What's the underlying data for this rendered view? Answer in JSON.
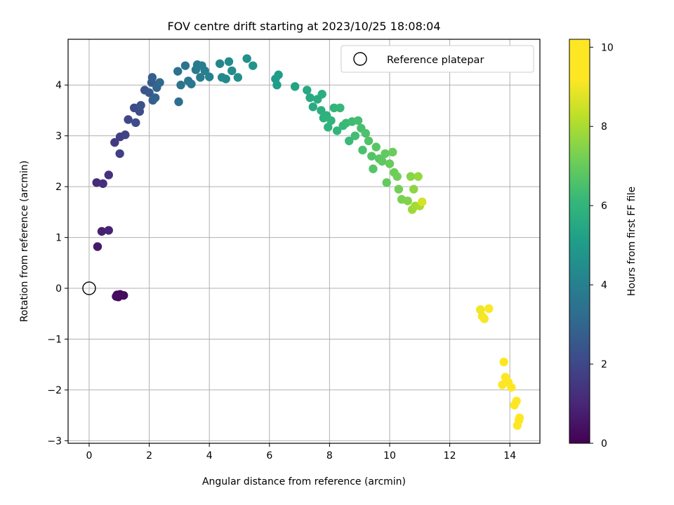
{
  "chart_data": {
    "type": "scatter",
    "title": "FOV centre drift starting at 2023/10/25 18:08:04",
    "xlabel": "Angular distance from reference (arcmin)",
    "ylabel": "Rotation from reference (arcmin)",
    "xlim": [
      -0.7,
      15.0
    ],
    "ylim": [
      -3.05,
      4.9
    ],
    "xticks": [
      "0",
      "2",
      "4",
      "6",
      "8",
      "10",
      "12",
      "14"
    ],
    "xtick_values": [
      0,
      2,
      4,
      6,
      8,
      10,
      12,
      14
    ],
    "yticks": [
      "−3",
      "−2",
      "−1",
      "0",
      "1",
      "2",
      "3",
      "4"
    ],
    "ytick_values": [
      -3,
      -2,
      -1,
      0,
      1,
      2,
      3,
      4
    ],
    "grid": true,
    "legend": {
      "placement": "top-right",
      "entries": [
        "Reference platepar"
      ]
    },
    "reference": {
      "x": 0,
      "y": 0
    },
    "colorbar": {
      "label": "Hours from first FF file",
      "colormap": "viridis",
      "range": [
        0,
        10.2
      ],
      "ticks": [
        "0",
        "2",
        "4",
        "6",
        "8",
        "10"
      ],
      "tick_values": [
        0,
        2,
        4,
        6,
        8,
        10
      ]
    },
    "points": [
      [
        0.93,
        -0.13,
        0.1
      ],
      [
        0.97,
        -0.17,
        0.15
      ],
      [
        1.03,
        -0.12,
        0.2
      ],
      [
        1.15,
        -0.14,
        0.25
      ],
      [
        0.9,
        -0.16,
        0.3
      ],
      [
        0.28,
        0.82,
        0.6
      ],
      [
        0.42,
        1.12,
        0.8
      ],
      [
        0.65,
        1.14,
        0.9
      ],
      [
        0.25,
        2.08,
        1.1
      ],
      [
        0.46,
        2.06,
        1.2
      ],
      [
        0.65,
        2.23,
        1.3
      ],
      [
        0.85,
        2.87,
        1.6
      ],
      [
        1.03,
        2.98,
        1.7
      ],
      [
        1.02,
        2.65,
        1.75
      ],
      [
        1.2,
        3.02,
        1.85
      ],
      [
        1.3,
        3.32,
        2.0
      ],
      [
        1.5,
        3.55,
        2.1
      ],
      [
        1.55,
        3.26,
        2.15
      ],
      [
        1.68,
        3.48,
        2.2
      ],
      [
        1.72,
        3.6,
        2.3
      ],
      [
        1.85,
        3.9,
        2.45
      ],
      [
        2.0,
        3.85,
        2.55
      ],
      [
        2.08,
        4.05,
        2.65
      ],
      [
        2.1,
        4.15,
        2.75
      ],
      [
        2.12,
        3.7,
        2.8
      ],
      [
        2.2,
        3.75,
        2.9
      ],
      [
        2.25,
        3.95,
        3.0
      ],
      [
        2.35,
        4.05,
        3.1
      ],
      [
        2.98,
        3.67,
        3.3
      ],
      [
        2.95,
        4.27,
        3.4
      ],
      [
        3.05,
        4.0,
        3.5
      ],
      [
        3.2,
        4.38,
        3.55
      ],
      [
        3.3,
        4.08,
        3.6
      ],
      [
        3.4,
        4.02,
        3.7
      ],
      [
        3.55,
        4.3,
        3.75
      ],
      [
        3.6,
        4.4,
        3.8
      ],
      [
        3.7,
        4.15,
        3.85
      ],
      [
        3.75,
        4.38,
        3.9
      ],
      [
        3.85,
        4.28,
        3.95
      ],
      [
        4.0,
        4.16,
        4.05
      ],
      [
        4.35,
        4.42,
        4.2
      ],
      [
        4.42,
        4.15,
        4.3
      ],
      [
        4.55,
        4.12,
        4.35
      ],
      [
        4.65,
        4.46,
        4.4
      ],
      [
        4.75,
        4.28,
        4.45
      ],
      [
        4.95,
        4.15,
        4.5
      ],
      [
        5.25,
        4.52,
        4.6
      ],
      [
        5.45,
        4.38,
        4.7
      ],
      [
        6.2,
        4.12,
        5.0
      ],
      [
        6.3,
        4.2,
        5.05
      ],
      [
        6.25,
        4.0,
        5.1
      ],
      [
        6.85,
        3.97,
        5.3
      ],
      [
        7.25,
        3.9,
        5.5
      ],
      [
        7.35,
        3.75,
        5.55
      ],
      [
        7.45,
        3.57,
        5.6
      ],
      [
        7.6,
        3.72,
        5.65
      ],
      [
        7.75,
        3.82,
        5.7
      ],
      [
        7.72,
        3.5,
        5.75
      ],
      [
        7.8,
        3.35,
        5.8
      ],
      [
        7.9,
        3.4,
        5.85
      ],
      [
        7.95,
        3.17,
        5.9
      ],
      [
        8.05,
        3.3,
        5.95
      ],
      [
        8.15,
        3.55,
        6.0
      ],
      [
        8.25,
        3.1,
        6.05
      ],
      [
        8.35,
        3.55,
        6.1
      ],
      [
        8.45,
        3.2,
        6.15
      ],
      [
        8.55,
        3.25,
        6.2
      ],
      [
        8.65,
        2.9,
        6.25
      ],
      [
        8.75,
        3.28,
        6.3
      ],
      [
        8.85,
        3.0,
        6.35
      ],
      [
        8.95,
        3.3,
        6.4
      ],
      [
        9.05,
        3.15,
        6.45
      ],
      [
        9.1,
        2.72,
        6.5
      ],
      [
        9.2,
        3.05,
        6.55
      ],
      [
        9.3,
        2.9,
        6.6
      ],
      [
        9.4,
        2.6,
        6.65
      ],
      [
        9.45,
        2.35,
        6.7
      ],
      [
        9.55,
        2.78,
        6.75
      ],
      [
        9.65,
        2.55,
        6.8
      ],
      [
        9.75,
        2.5,
        6.85
      ],
      [
        9.85,
        2.65,
        6.9
      ],
      [
        9.9,
        2.08,
        6.95
      ],
      [
        10.0,
        2.45,
        7.0
      ],
      [
        10.1,
        2.68,
        7.05
      ],
      [
        10.15,
        2.28,
        7.1
      ],
      [
        10.25,
        2.2,
        7.15
      ],
      [
        10.3,
        1.95,
        7.2
      ],
      [
        10.4,
        1.75,
        7.3
      ],
      [
        10.6,
        1.72,
        7.4
      ],
      [
        10.7,
        2.2,
        7.5
      ],
      [
        10.8,
        1.95,
        7.6
      ],
      [
        10.95,
        2.2,
        7.7
      ],
      [
        10.75,
        1.55,
        7.8
      ],
      [
        10.85,
        1.62,
        7.9
      ],
      [
        11.0,
        1.62,
        8.0
      ],
      [
        11.08,
        1.7,
        8.6
      ],
      [
        13.02,
        -0.42,
        9.0
      ],
      [
        13.08,
        -0.55,
        9.05
      ],
      [
        13.15,
        -0.6,
        9.1
      ],
      [
        13.3,
        -0.4,
        9.15
      ],
      [
        13.8,
        -1.45,
        9.4
      ],
      [
        13.75,
        -1.9,
        9.5
      ],
      [
        13.85,
        -1.75,
        9.55
      ],
      [
        13.95,
        -1.85,
        9.6
      ],
      [
        14.05,
        -1.95,
        9.65
      ],
      [
        14.15,
        -2.3,
        9.8
      ],
      [
        14.22,
        -2.22,
        9.85
      ],
      [
        14.3,
        -2.6,
        10.0
      ],
      [
        14.25,
        -2.7,
        10.05
      ],
      [
        14.32,
        -2.55,
        10.1
      ]
    ]
  }
}
